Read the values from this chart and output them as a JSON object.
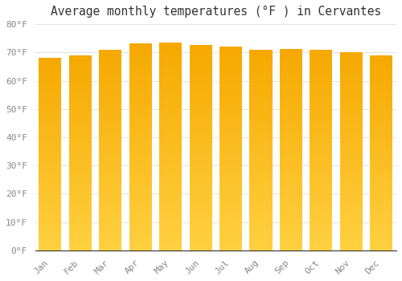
{
  "title": "Average monthly temperatures (°F ) in Cervantes",
  "months": [
    "Jan",
    "Feb",
    "Mar",
    "Apr",
    "May",
    "Jun",
    "Jul",
    "Aug",
    "Sep",
    "Oct",
    "Nov",
    "Dec"
  ],
  "values": [
    68.0,
    69.0,
    71.0,
    73.2,
    73.5,
    72.5,
    72.0,
    71.0,
    71.2,
    71.0,
    70.0,
    69.0
  ],
  "bar_color_top": "#F5A800",
  "bar_color_bottom": "#FFD040",
  "background_color": "#FFFFFF",
  "plot_bg_color": "#FFFFFF",
  "grid_color": "#DDDDDD",
  "text_color": "#888888",
  "ylim": [
    0,
    80
  ],
  "yticks": [
    0,
    10,
    20,
    30,
    40,
    50,
    60,
    70,
    80
  ],
  "ytick_labels": [
    "0°F",
    "10°F",
    "20°F",
    "30°F",
    "40°F",
    "50°F",
    "60°F",
    "70°F",
    "80°F"
  ],
  "title_fontsize": 10.5,
  "tick_fontsize": 8,
  "bar_width": 0.75
}
